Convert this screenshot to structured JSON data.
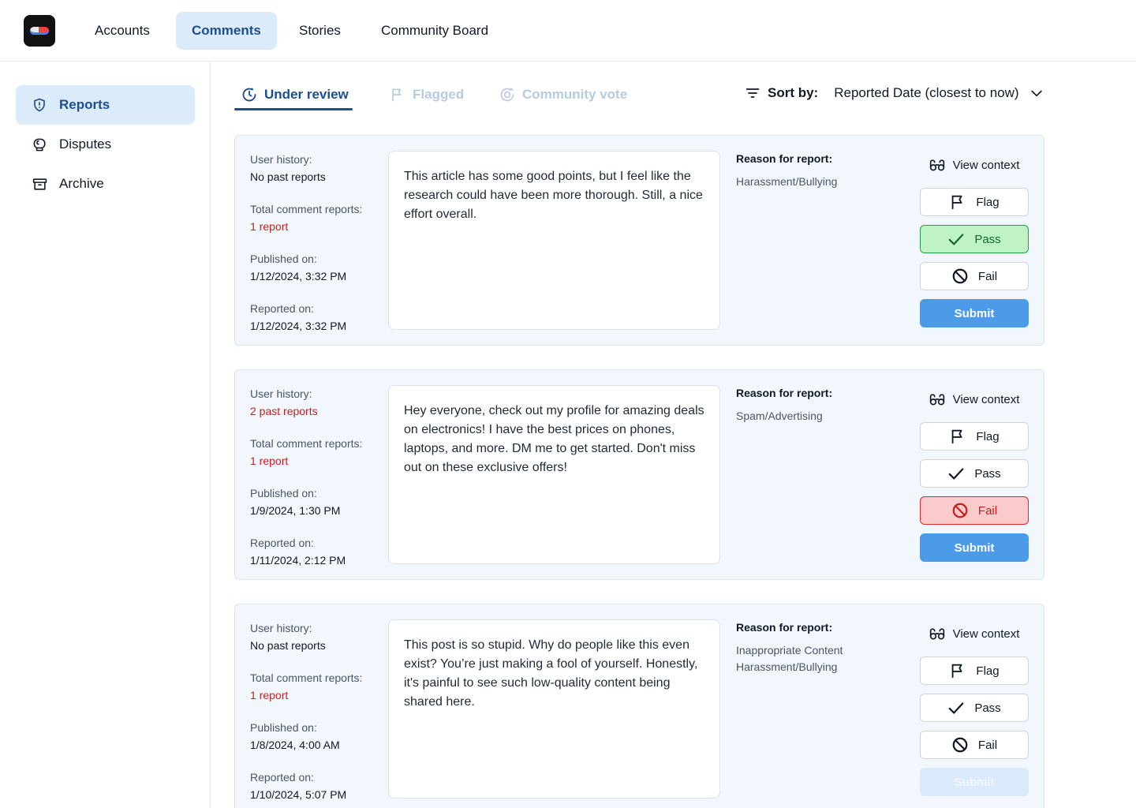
{
  "topnav": {
    "tabs": [
      {
        "label": "Accounts",
        "active": false
      },
      {
        "label": "Comments",
        "active": true
      },
      {
        "label": "Stories",
        "active": false
      },
      {
        "label": "Community Board",
        "active": false
      }
    ]
  },
  "sidebar": {
    "items": [
      {
        "label": "Reports",
        "icon": "shield-alert-icon",
        "active": true
      },
      {
        "label": "Disputes",
        "icon": "boxing-glove-icon",
        "active": false
      },
      {
        "label": "Archive",
        "icon": "archive-box-icon",
        "active": false
      }
    ]
  },
  "subtabs": [
    {
      "label": "Under review",
      "icon": "clock-icon",
      "state": "active"
    },
    {
      "label": "Flagged",
      "icon": "flag-icon",
      "state": "disabled"
    },
    {
      "label": "Community vote",
      "icon": "vote-icon",
      "state": "disabled"
    }
  ],
  "sort": {
    "label": "Sort by:",
    "value": "Reported Date (closest to now)"
  },
  "labels": {
    "user_history": "User history:",
    "total_reports": "Total comment reports:",
    "published_on": "Published on:",
    "reported_on": "Reported on:",
    "reason": "Reason for report:",
    "view_context": "View context",
    "flag": "Flag",
    "pass": "Pass",
    "fail": "Fail",
    "submit": "Submit"
  },
  "reports": [
    {
      "user_history": "No past reports",
      "user_history_alert": false,
      "total_reports": "1 report",
      "published_on": "1/12/2024, 3:32 PM",
      "reported_on": "1/12/2024, 3:32 PM",
      "comment": "This article has some good points, but I feel like the research could have been more thorough. Still, a nice effort overall.",
      "reasons": [
        "Harassment/Bullying"
      ],
      "selected": "pass",
      "submit_enabled": true
    },
    {
      "user_history": "2 past reports",
      "user_history_alert": true,
      "total_reports": "1 report",
      "published_on": "1/9/2024, 1:30 PM",
      "reported_on": "1/11/2024, 2:12 PM",
      "comment": "Hey everyone, check out my profile for amazing deals on electronics! I have the best prices on phones, laptops, and more. DM me to get started. Don't miss out on these exclusive offers!",
      "reasons": [
        "Spam/Advertising"
      ],
      "selected": "fail",
      "submit_enabled": true
    },
    {
      "user_history": "No past reports",
      "user_history_alert": false,
      "total_reports": "1 report",
      "published_on": "1/8/2024, 4:00 AM",
      "reported_on": "1/10/2024, 5:07 PM",
      "comment": "This post is so stupid. Why do people like this even exist? You’re just making a fool of yourself. Honestly, it's painful to see such low-quality content being shared here.",
      "reasons": [
        "Inappropriate Content",
        "Harassment/Bullying"
      ],
      "selected": "none",
      "submit_enabled": false
    }
  ],
  "colors": {
    "accent": "#1e4f8a",
    "accent_bg": "#dcebfa",
    "submit": "#4b9be8",
    "danger": "#c81e1e",
    "pass_bg": "#bff3c6",
    "fail_bg": "#fbcaca",
    "card_bg": "#f1f7fd"
  }
}
